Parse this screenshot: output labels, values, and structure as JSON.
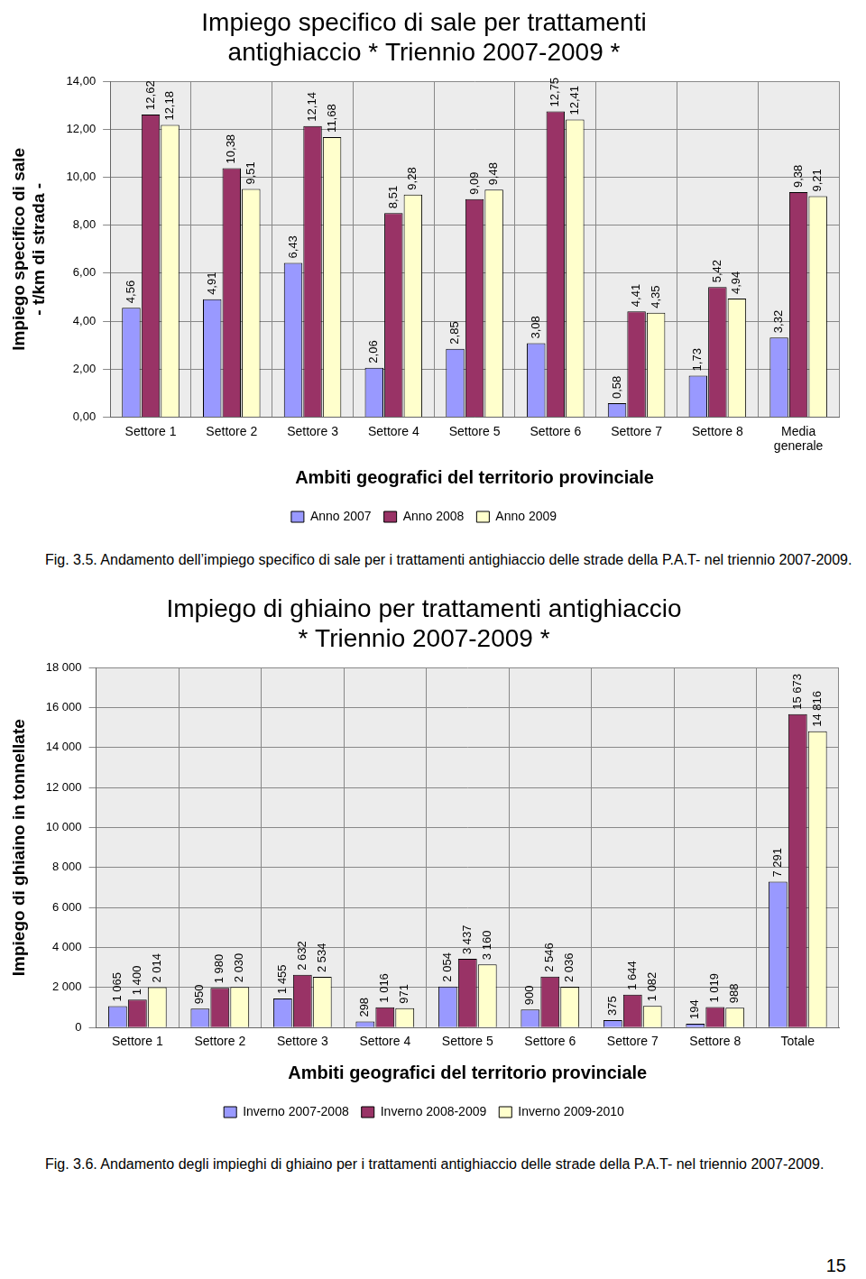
{
  "chart_data": [
    {
      "type": "bar",
      "title": [
        "Impiego specifico di sale per trattamenti",
        "antighiaccio * Triennio 2007-2009 *"
      ],
      "x_label": "Ambiti geografici del territorio provinciale",
      "y_label": [
        "Impiego specifico di sale",
        "- t/km di strada -"
      ],
      "categories": [
        "Settore 1",
        "Settore 2",
        "Settore 3",
        "Settore 4",
        "Settore 5",
        "Settore 6",
        "Settore 7",
        "Settore 8",
        "Media generale"
      ],
      "series": [
        {
          "name": "Anno 2007",
          "color": "#9999ff",
          "values": [
            4.56,
            4.91,
            6.43,
            2.06,
            2.85,
            3.08,
            0.58,
            1.73,
            3.32
          ],
          "value_labels": [
            "4,56",
            "4,91",
            "6,43",
            "2,06",
            "2,85",
            "3,08",
            "0,58",
            "1,73",
            "3,32"
          ]
        },
        {
          "name": "Anno 2008",
          "color": "#993366",
          "values": [
            12.62,
            10.38,
            12.14,
            8.51,
            9.09,
            12.75,
            4.41,
            5.42,
            9.38
          ],
          "value_labels": [
            "12,62",
            "10,38",
            "12,14",
            "8,51",
            "9,09",
            "12,75",
            "4,41",
            "5,42",
            "9,38"
          ]
        },
        {
          "name": "Anno 2009",
          "color": "#ffffcc",
          "values": [
            12.18,
            9.51,
            11.68,
            9.28,
            9.48,
            12.41,
            4.35,
            4.94,
            9.21
          ],
          "value_labels": [
            "12,18",
            "9,51",
            "11,68",
            "9,28",
            "9,48",
            "12,41",
            "4,35",
            "4,94",
            "9,21"
          ]
        }
      ],
      "ylim": [
        0,
        14
      ],
      "yticks": [
        {
          "value": 0,
          "label": "0,00"
        },
        {
          "value": 2,
          "label": "2,00"
        },
        {
          "value": 4,
          "label": "4,00"
        },
        {
          "value": 6,
          "label": "6,00"
        },
        {
          "value": 8,
          "label": "8,00"
        },
        {
          "value": 10,
          "label": "10,00"
        },
        {
          "value": 12,
          "label": "12,00"
        },
        {
          "value": 14,
          "label": "14,00"
        }
      ],
      "grid": true,
      "legend": "bottom",
      "data_labels": true
    },
    {
      "type": "bar",
      "title": [
        "Impiego di ghiaino per trattamenti antighiaccio",
        "* Triennio 2007-2009 *"
      ],
      "x_label": "Ambiti geografici del territorio provinciale",
      "y_label": "Impiego di ghiaino in tonnellate",
      "categories": [
        "Settore 1",
        "Settore 2",
        "Settore 3",
        "Settore 4",
        "Settore 5",
        "Settore 6",
        "Settore 7",
        "Settore 8",
        "Totale"
      ],
      "series": [
        {
          "name": "Inverno 2007-2008",
          "color": "#9999ff",
          "values": [
            1065,
            950,
            1455,
            298,
            2054,
            900,
            375,
            194,
            7291
          ],
          "value_labels": [
            "1 065",
            "950",
            "1 455",
            "298",
            "2 054",
            "900",
            "375",
            "194",
            "7 291"
          ]
        },
        {
          "name": "Inverno 2008-2009",
          "color": "#993366",
          "values": [
            1400,
            1980,
            2632,
            1016,
            3437,
            2546,
            1644,
            1019,
            15673
          ],
          "value_labels": [
            "1 400",
            "1 980",
            "2 632",
            "1 016",
            "3 437",
            "2 546",
            "1 644",
            "1 019",
            "15 673"
          ]
        },
        {
          "name": "Inverno 2009-2010",
          "color": "#ffffcc",
          "values": [
            2014,
            2030,
            2534,
            971,
            3160,
            2036,
            1082,
            988,
            14816
          ],
          "value_labels": [
            "2 014",
            "2 030",
            "2 534",
            "971",
            "3 160",
            "2 036",
            "1 082",
            "988",
            "14 816"
          ]
        }
      ],
      "ylim": [
        0,
        18000
      ],
      "yticks": [
        0,
        {
          "value": 2000,
          "label": "2 000"
        },
        {
          "value": 4000,
          "label": "4 000"
        },
        {
          "value": 6000,
          "label": "6 000"
        },
        {
          "value": 8000,
          "label": "8 000"
        },
        {
          "value": 10000,
          "label": "10 000"
        },
        {
          "value": 12000,
          "label": "12 000"
        },
        {
          "value": 14000,
          "label": "14 000"
        },
        {
          "value": 16000,
          "label": "16 000"
        },
        {
          "value": 18000,
          "label": "18 000"
        }
      ],
      "grid": true,
      "legend": "bottom",
      "data_labels": true
    }
  ],
  "captions": [
    "Fig. 3.5. Andamento dell’impiego specifico di sale per i trattamenti antighiaccio delle strade della P.A.T- nel triennio 2007-2009.",
    "Fig. 3.6. Andamento degli impieghi di ghiaino per i trattamenti antighiaccio delle strade della P.A.T- nel triennio 2007-2009."
  ],
  "page_number": "15"
}
